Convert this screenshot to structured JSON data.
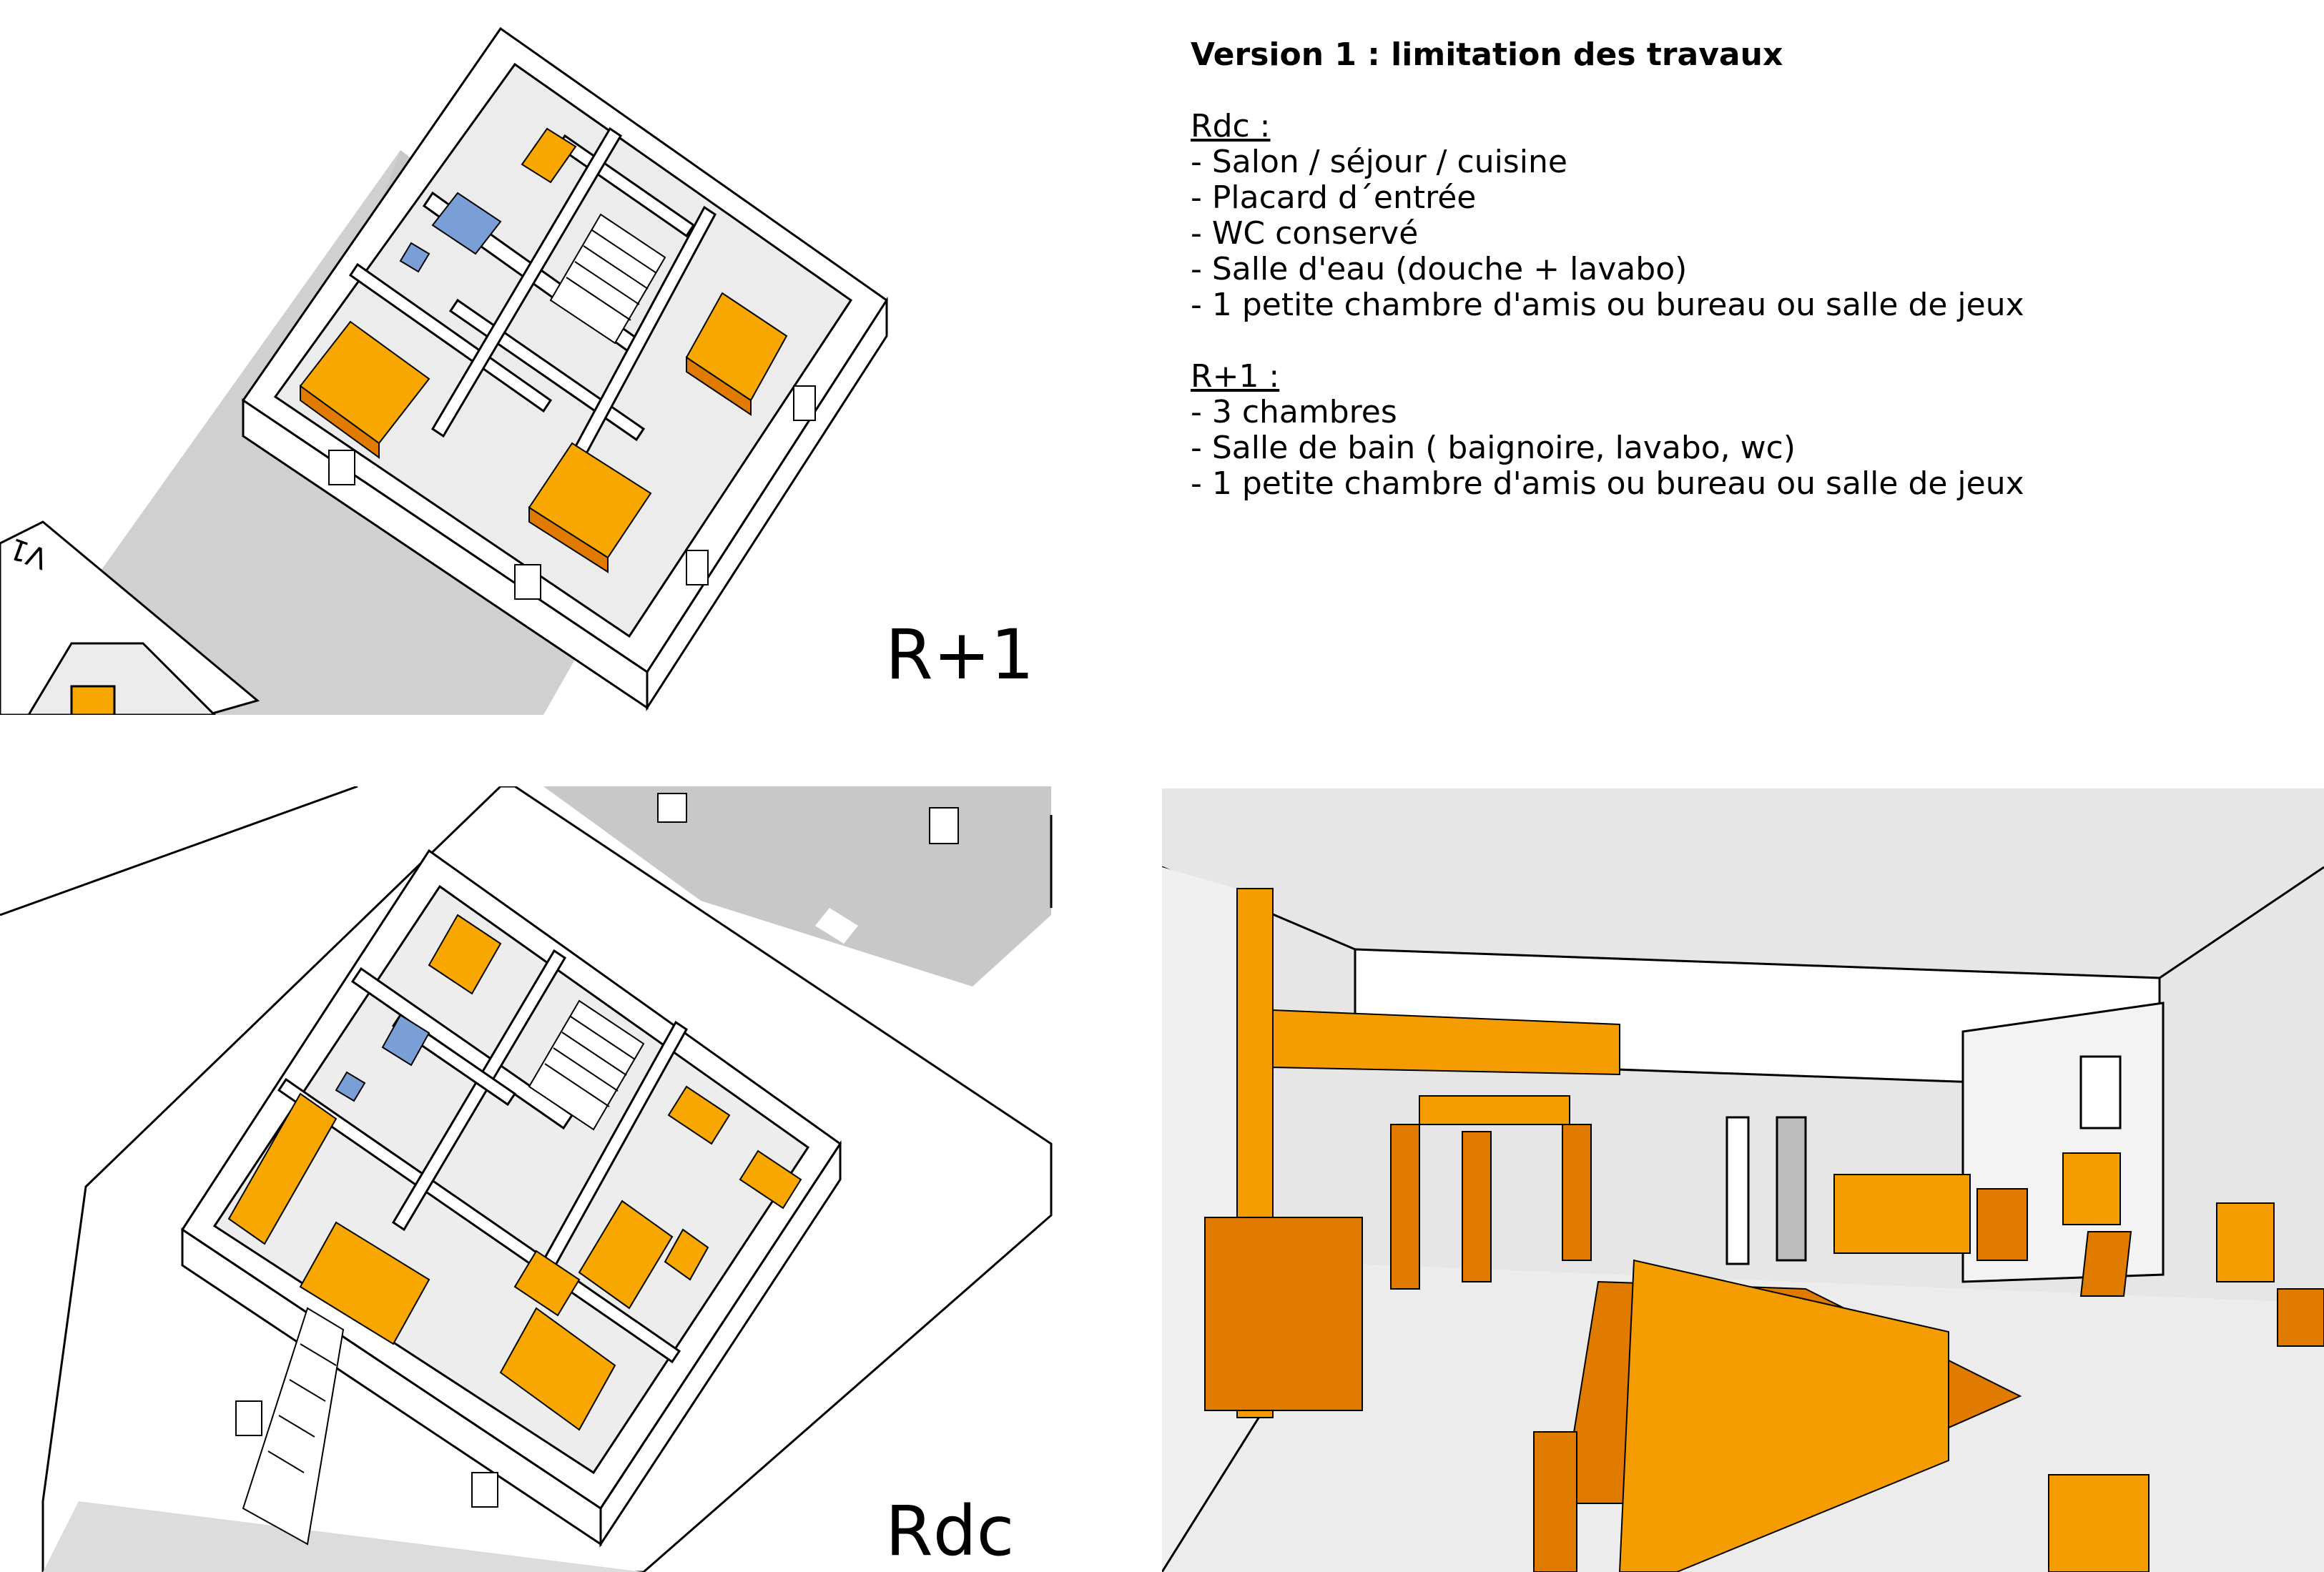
{
  "description_panel": {
    "title": "Version 1 : limitation des travaux",
    "sections": [
      {
        "heading": "Rdc :",
        "items": [
          "- Salon / séjour / cuisine",
          "- Placard d´entrée",
          "- WC conservé",
          "- Salle d'eau (douche + lavabo)",
          "- 1 petite chambre d'amis ou bureau ou salle de jeux"
        ]
      },
      {
        "heading": "R+1 :",
        "items": [
          "- 3 chambres",
          "- Salle de bain ( baignoire, lavabo, wc)",
          "- 1 petite chambre d'amis ou bureau ou salle de jeux"
        ]
      }
    ]
  },
  "views": {
    "upper_floor_label": "R+1",
    "ground_floor_label": "Rdc",
    "drawing_mark": "V1"
  },
  "colors": {
    "furniture_orange": "#f59c00",
    "furniture_orange_dark": "#e07b00",
    "sanitary_blue": "#7a9fd6",
    "shadow_grey": "#cfcfcf",
    "wall_white": "#ffffff",
    "line_black": "#000000"
  }
}
